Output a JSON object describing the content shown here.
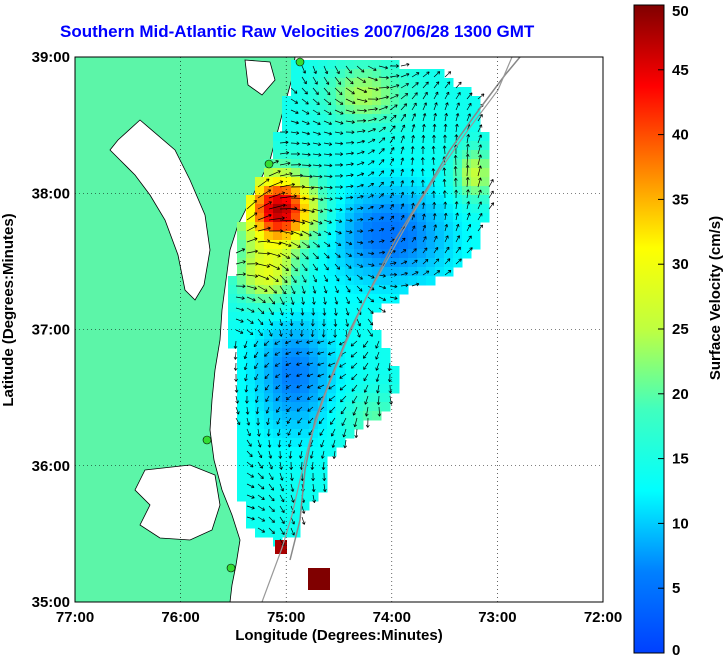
{
  "title": "Southern Mid-Atlantic Raw Velocities 2007/06/28 1300 GMT",
  "map": {
    "x_axis": {
      "label": "Longitude (Degrees:Minutes)",
      "range": [
        -77,
        -72
      ],
      "ticks": [
        -77,
        -76,
        -75,
        -74,
        -73,
        -72
      ],
      "tick_labels": [
        "77:00",
        "76:00",
        "75:00",
        "74:00",
        "73:00",
        "72:00"
      ]
    },
    "y_axis": {
      "label": "Latitude (Degrees:Minutes)",
      "range": [
        35,
        39
      ],
      "ticks": [
        35,
        36,
        37,
        38,
        39
      ],
      "tick_labels": [
        "35:00",
        "36:00",
        "37:00",
        "38:00",
        "39:00"
      ]
    },
    "grid": "dotted",
    "land_color": "#5cf5a8",
    "arrow_color": "#000000",
    "radar_station_color": "#33dd33"
  },
  "colorbar": {
    "label": "Surface Velocity (cm/s)",
    "range": [
      0,
      50
    ],
    "tick_labels": [
      "0",
      "5",
      "10",
      "15",
      "20",
      "25",
      "30",
      "35",
      "40",
      "45",
      "50"
    ],
    "colormap": "jet"
  }
}
